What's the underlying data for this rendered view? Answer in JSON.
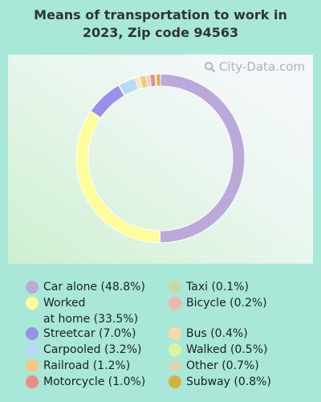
{
  "title_line1": "Means of transportation to work in",
  "title_line2": "2023, Zip code 94563",
  "watermark": "City-Data.com",
  "chart_data": {
    "type": "pie",
    "variant": "donut",
    "title": "Means of transportation to work in 2023, Zip code 94563",
    "legend_placement": "bottom",
    "slices": [
      {
        "label": "Car alone",
        "value": 48.8,
        "color": "#bba9dc"
      },
      {
        "label": "Worked at home",
        "value": 33.5,
        "color": "#fffc9b"
      },
      {
        "label": "Streetcar",
        "value": 7.0,
        "color": "#9a90ec"
      },
      {
        "label": "Taxi",
        "value": 0.1,
        "color": "#c5d8a8"
      },
      {
        "label": "Carpooled",
        "value": 3.2,
        "color": "#b9d9f7"
      },
      {
        "label": "Bus",
        "value": 0.4,
        "color": "#fad8ac"
      },
      {
        "label": "Walked",
        "value": 0.5,
        "color": "#dcf59c"
      },
      {
        "label": "Railroad",
        "value": 1.2,
        "color": "#f5c783"
      },
      {
        "label": "Other",
        "value": 0.7,
        "color": "#dcd6b8"
      },
      {
        "label": "Motorcycle",
        "value": 1.0,
        "color": "#e88d8a"
      },
      {
        "label": "Bicycle",
        "value": 0.2,
        "color": "#f0b6b3"
      },
      {
        "label": "Subway",
        "value": 0.8,
        "color": "#d3b13c"
      }
    ]
  },
  "legend": {
    "left": [
      {
        "line1": "Car alone (48.8%)",
        "color": "#bba9dc"
      },
      {
        "line1": "Worked",
        "line2": "at home (33.5%)",
        "color": "#fffc9b"
      },
      {
        "line1": "Streetcar (7.0%)",
        "color": "#9a90ec"
      },
      {
        "line1": "Carpooled (3.2%)",
        "color": "#b9d9f7"
      },
      {
        "line1": "Railroad (1.2%)",
        "color": "#f5c783"
      },
      {
        "line1": "Motorcycle (1.0%)",
        "color": "#e88d8a"
      }
    ],
    "right": [
      {
        "line1": "Taxi (0.1%)",
        "color": "#c5d8a8"
      },
      {
        "line1": "Bicycle (0.2%)",
        "color": "#f0b6b3"
      },
      {
        "line1": "Bus (0.4%)",
        "color": "#fad8ac"
      },
      {
        "line1": "Walked (0.5%)",
        "color": "#dcf59c"
      },
      {
        "line1": "Other (0.7%)",
        "color": "#dcd6b8"
      },
      {
        "line1": "Subway (0.8%)",
        "color": "#d3b13c"
      }
    ]
  }
}
